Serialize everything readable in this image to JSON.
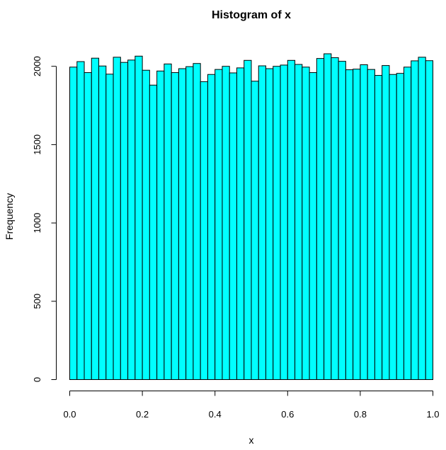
{
  "chart_data": {
    "type": "bar",
    "title": "Histogram of x",
    "xlabel": "x",
    "ylabel": "Frequency",
    "bar_color": "#00ffff",
    "x_range": [
      0,
      1
    ],
    "bin_width": 0.02,
    "xlim": [
      0,
      1
    ],
    "ylim": [
      0,
      2080
    ],
    "x_ticks": [
      0.0,
      0.2,
      0.4,
      0.6,
      0.8,
      1.0
    ],
    "x_tick_labels": [
      "0.0",
      "0.2",
      "0.4",
      "0.6",
      "0.8",
      "1.0"
    ],
    "y_ticks": [
      0,
      500,
      1000,
      1500,
      2000
    ],
    "y_tick_labels": [
      "0",
      "500",
      "1000",
      "1500",
      "2000"
    ],
    "grid": false,
    "values": [
      1995,
      2030,
      1960,
      2052,
      2002,
      1950,
      2058,
      2025,
      2040,
      2065,
      1975,
      1880,
      1970,
      2015,
      1960,
      1985,
      1998,
      2018,
      1902,
      1948,
      1980,
      2000,
      1958,
      1990,
      2038,
      1905,
      2003,
      1985,
      2000,
      2008,
      2038,
      2012,
      1995,
      1960,
      2050,
      2080,
      2055,
      2032,
      1978,
      1982,
      2010,
      1980,
      1942,
      2005,
      1948,
      1955,
      1995,
      2035,
      2058,
      2036
    ]
  }
}
